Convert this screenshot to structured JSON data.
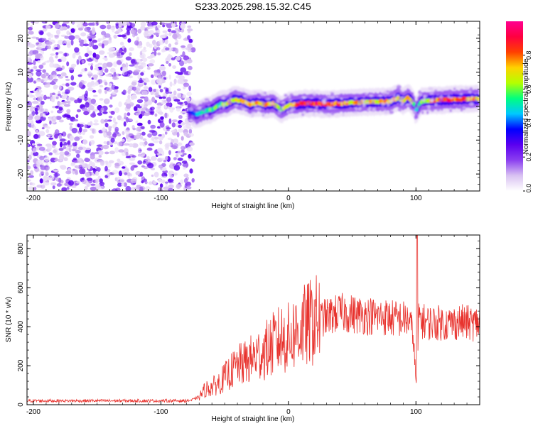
{
  "title": "S233.2025.298.15.32.C45",
  "chart_data": [
    {
      "type": "heatmap",
      "name": "spectrogram",
      "xlabel": "Height of straight line (km)",
      "ylabel": "Frequency (Hz)",
      "xlim": [
        -205,
        150
      ],
      "ylim": [
        -25,
        25
      ],
      "xticks": [
        -200,
        -100,
        0,
        100
      ],
      "yticks": [
        -20,
        -10,
        0,
        10,
        20
      ],
      "colorbar": {
        "label": "Normalized spectral amplitude",
        "range": [
          0,
          1
        ],
        "ticks": [
          0.0,
          0.2,
          0.4,
          0.6,
          0.8
        ],
        "tick_labels": [
          "0.0",
          "0.2",
          "0.4",
          "0.6",
          "0.8"
        ],
        "colormap": [
          "#ffffff",
          "#d9c2f2",
          "#8b3ff0",
          "#5a00f0",
          "#0000ff",
          "#00c8ff",
          "#00ff7f",
          "#b4ff00",
          "#ffd200",
          "#ff4000",
          "#ff0040",
          "#ff0090"
        ]
      },
      "noise_region_x": [
        -205,
        -78
      ],
      "ridge": {
        "x": [
          -78,
          -72,
          -66,
          -60,
          -54,
          -48,
          -42,
          -36,
          -30,
          -24,
          -18,
          -12,
          -6,
          0,
          10,
          20,
          30,
          40,
          50,
          60,
          70,
          80,
          86,
          90,
          94,
          98,
          100,
          104,
          110,
          120,
          130,
          140,
          150
        ],
        "freq": [
          -1.5,
          -2.5,
          -1.5,
          -1.0,
          0.5,
          0.8,
          2.0,
          1.5,
          0.5,
          1.0,
          0.5,
          0.8,
          -1.0,
          0.2,
          0.8,
          0.8,
          0.6,
          0.8,
          1.0,
          1.2,
          1.3,
          1.4,
          2.5,
          1.5,
          2.5,
          1.0,
          -1.5,
          1.5,
          1.6,
          1.8,
          2.0,
          2.1,
          2.2
        ],
        "amplitude": [
          0.35,
          0.45,
          0.5,
          0.6,
          0.55,
          0.7,
          0.75,
          0.7,
          0.72,
          0.8,
          0.75,
          0.7,
          0.6,
          0.7,
          0.9,
          0.9,
          0.85,
          0.8,
          0.75,
          0.7,
          0.7,
          0.85,
          0.75,
          0.7,
          0.8,
          0.6,
          0.5,
          0.6,
          0.7,
          0.9,
          0.85,
          0.8,
          0.75
        ]
      }
    },
    {
      "type": "line",
      "name": "snr",
      "xlabel": "Height of straight line (km)",
      "ylabel": "SNR (10 * v/v)",
      "xlim": [
        -205,
        150
      ],
      "ylim": [
        0,
        870
      ],
      "xticks": [
        -200,
        -100,
        0,
        100
      ],
      "yticks": [
        0,
        200,
        400,
        600,
        800
      ],
      "color": "#e8332e",
      "series": [
        {
          "name": "SNR",
          "x": [
            -205,
            -180,
            -150,
            -120,
            -100,
            -90,
            -80,
            -75,
            -70,
            -65,
            -60,
            -55,
            -50,
            -45,
            -40,
            -35,
            -30,
            -25,
            -20,
            -15,
            -10,
            -5,
            0,
            5,
            10,
            15,
            20,
            25,
            30,
            35,
            40,
            45,
            50,
            55,
            60,
            65,
            70,
            75,
            80,
            85,
            90,
            95,
            98,
            100,
            101,
            102,
            103,
            105,
            110,
            115,
            120,
            125,
            130,
            135,
            140,
            145,
            150
          ],
          "value": [
            20,
            20,
            20,
            20,
            20,
            20,
            20,
            25,
            40,
            80,
            90,
            110,
            140,
            170,
            200,
            210,
            230,
            250,
            270,
            290,
            320,
            340,
            340,
            370,
            390,
            410,
            430,
            440,
            450,
            460,
            470,
            470,
            465,
            460,
            460,
            455,
            450,
            450,
            445,
            440,
            440,
            430,
            350,
            120,
            60,
            420,
            450,
            430,
            420,
            420,
            420,
            415,
            420,
            425,
            420,
            415,
            420
          ]
        }
      ]
    }
  ]
}
